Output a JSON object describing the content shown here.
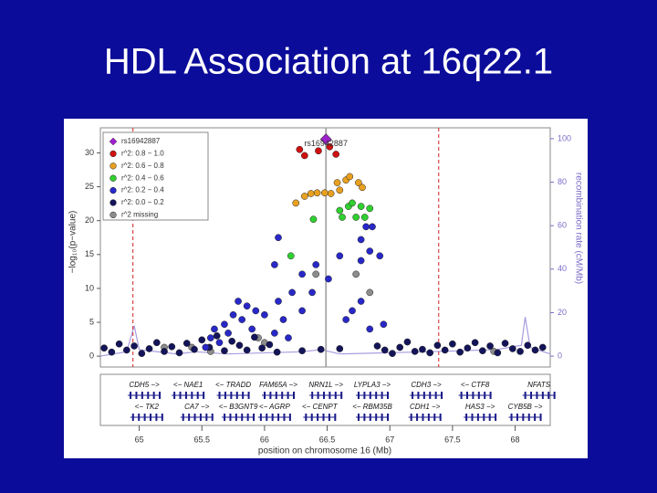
{
  "chart_data": {
    "type": "scatter",
    "title": "HDL Association at 16q22.1",
    "x_label": "position on chromosome 16 (Mb)",
    "y_label": "−log₁₀(p−value)",
    "y2_label": "recombination rate (cM/Mb)",
    "annotation": "rs16942887",
    "xlim": [
      64.69,
      68.28
    ],
    "xticks": [
      65,
      65.5,
      66,
      66.5,
      67,
      67.5,
      68
    ],
    "ylim": [
      -1.6,
      33.7
    ],
    "yticks": [
      0,
      5,
      10,
      15,
      20,
      25,
      30
    ],
    "y2lim": [
      -5,
      105
    ],
    "y2ticks": [
      0,
      20,
      40,
      60,
      80,
      100
    ],
    "index_x": 66.49,
    "window": [
      64.95,
      67.39
    ],
    "series": [
      {
        "name": "rs16942887",
        "color": "#a020d0",
        "marker": "diamond",
        "x": [
          66.49
        ],
        "values": [
          32.0
        ]
      },
      {
        "name": "r^2: 0.8 − 1.0",
        "color": "#d01010",
        "x": [
          66.32,
          66.43,
          66.52,
          66.57,
          66.28
        ],
        "values": [
          29.6,
          30.3,
          30.9,
          29.8,
          30.5
        ]
      },
      {
        "name": "r^2: 0.6 − 0.8",
        "color": "#e8a020",
        "x": [
          66.25,
          66.32,
          66.42,
          66.48,
          66.53,
          66.6,
          66.65,
          66.68,
          66.75,
          66.78,
          66.58,
          66.37
        ],
        "values": [
          22.6,
          23.6,
          24.1,
          24.1,
          24.0,
          24.5,
          26.0,
          26.5,
          25.6,
          24.9,
          25.6,
          24.0
        ]
      },
      {
        "name": "r^2: 0.4 − 0.6",
        "color": "#30d030",
        "x": [
          66.21,
          66.39,
          66.6,
          66.67,
          66.77,
          66.84,
          66.62,
          66.73,
          66.8,
          66.7
        ],
        "values": [
          14.8,
          20.2,
          21.5,
          22.1,
          22.1,
          21.8,
          20.5,
          20.5,
          20.5,
          22.6
        ]
      },
      {
        "name": "r^2: 0.2 − 0.4",
        "color": "#2828c8",
        "x": [
          66.81,
          66.86,
          66.77,
          66.84,
          66.77,
          66.92,
          66.3,
          66.41,
          66.6,
          66.11,
          66.08,
          66.22,
          66.38,
          66.51,
          66.7,
          66.65,
          66.77,
          66.84,
          66.95,
          66.11,
          66.3,
          65.79,
          65.86,
          65.75,
          65.93,
          65.68,
          65.82,
          65.6,
          66.0,
          65.71,
          65.9,
          66.08,
          65.57,
          65.64,
          65.53,
          66.15,
          66.19
        ],
        "values": [
          19.1,
          19.1,
          17.2,
          15.5,
          14.1,
          14.8,
          12.1,
          13.5,
          14.8,
          17.5,
          13.5,
          9.4,
          9.4,
          11.4,
          6.7,
          5.4,
          8.1,
          4.0,
          4.7,
          8.1,
          6.7,
          8.1,
          7.4,
          6.1,
          6.7,
          4.7,
          5.4,
          4.0,
          6.1,
          3.4,
          4.0,
          3.4,
          2.7,
          2.0,
          1.3,
          5.4,
          2.7
        ]
      },
      {
        "name": "r^2: 0.0 − 0.2",
        "color": "#14145a",
        "x": [
          64.72,
          64.78,
          64.84,
          64.9,
          64.96,
          65.02,
          65.08,
          65.14,
          65.2,
          65.26,
          65.32,
          65.38,
          65.44,
          65.5,
          65.56,
          65.62,
          65.68,
          65.74,
          65.8,
          65.86,
          65.92,
          65.98,
          66.04,
          66.1,
          66.6,
          66.9,
          66.96,
          67.02,
          67.08,
          67.14,
          67.2,
          67.26,
          67.32,
          67.38,
          67.44,
          67.5,
          67.56,
          67.62,
          67.68,
          67.74,
          67.8,
          67.86,
          67.92,
          67.98,
          68.04,
          68.1,
          68.16,
          68.22,
          66.3,
          66.45
        ],
        "values": [
          1.2,
          0.6,
          1.8,
          0.9,
          1.5,
          0.4,
          1.1,
          2.0,
          0.7,
          1.4,
          0.5,
          1.9,
          1.0,
          2.4,
          1.3,
          3.0,
          0.8,
          2.2,
          1.6,
          0.9,
          2.8,
          1.2,
          1.7,
          0.6,
          1.1,
          1.5,
          0.9,
          0.4,
          1.3,
          2.1,
          0.7,
          1.0,
          0.5,
          1.6,
          0.9,
          1.8,
          0.6,
          1.2,
          2.0,
          0.8,
          1.5,
          0.5,
          1.9,
          1.1,
          0.7,
          1.6,
          0.9,
          1.3,
          0.8,
          1.0
        ]
      },
      {
        "name": "r^2 missing",
        "color": "#8c8c8c",
        "x": [
          66.41,
          66.73,
          66.84,
          65.42,
          65.57,
          66.0,
          65.2,
          67.83,
          65.95
        ],
        "values": [
          12.1,
          12.1,
          9.4,
          1.3,
          0.7,
          2.0,
          1.3,
          0.7,
          2.7
        ]
      }
    ],
    "recombination": {
      "axis": "y2",
      "color": "#a89ce0",
      "x": [
        64.69,
        64.9,
        64.96,
        65.0,
        65.3,
        65.45,
        65.7,
        66.3,
        66.45,
        66.6,
        67.3,
        67.85,
        68.05,
        68.08,
        68.12,
        68.28
      ],
      "values": [
        0,
        2,
        14,
        3,
        1,
        2,
        1,
        2,
        3,
        1,
        2,
        3,
        5,
        18,
        4,
        1
      ]
    },
    "genes": [
      {
        "label": "CDH5 −>",
        "row": 1,
        "x": 65.04
      },
      {
        "label": "<− NAE1",
        "row": 1,
        "x": 65.39
      },
      {
        "label": "<− TRADD",
        "row": 1,
        "x": 65.75
      },
      {
        "label": "FAM65A −>",
        "row": 1,
        "x": 66.11
      },
      {
        "label": "NRN1L −>",
        "row": 1,
        "x": 66.49
      },
      {
        "label": "LYPLA3 −>",
        "row": 1,
        "x": 66.86
      },
      {
        "label": "CDH3 −>",
        "row": 1,
        "x": 67.29
      },
      {
        "label": "<− CTF8",
        "row": 1,
        "x": 67.68
      },
      {
        "label": "NFATS",
        "row": 1,
        "x": 68.19
      },
      {
        "label": "<− TK2",
        "row": 2,
        "x": 65.06
      },
      {
        "label": "CA7 −>",
        "row": 2,
        "x": 65.46
      },
      {
        "label": "<− B3GNT9",
        "row": 2,
        "x": 65.79
      },
      {
        "label": "<− AGRP",
        "row": 2,
        "x": 66.08
      },
      {
        "label": "<− CENPT",
        "row": 2,
        "x": 66.44
      },
      {
        "label": "<− RBM35B",
        "row": 2,
        "x": 66.86
      },
      {
        "label": "CDH1 −>",
        "row": 2,
        "x": 67.28
      },
      {
        "label": "HAS3 −>",
        "row": 2,
        "x": 67.72
      },
      {
        "label": "CYB5B −>",
        "row": 2,
        "x": 68.08
      }
    ]
  }
}
